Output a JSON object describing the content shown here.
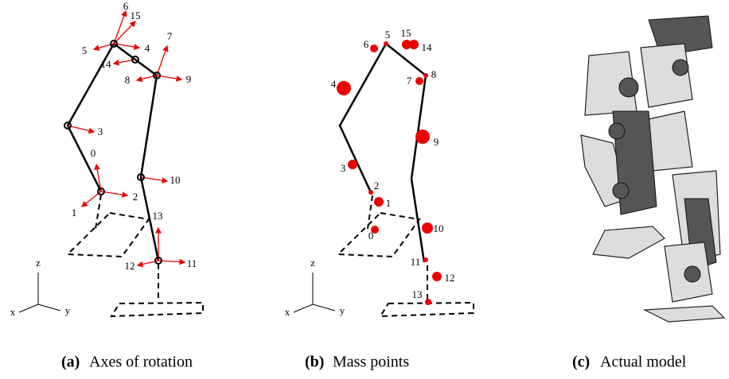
{
  "panels": [
    {
      "label": "(a)",
      "caption": "Axes of rotation",
      "joint_labels": [
        "0",
        "1",
        "2",
        "3",
        "4",
        "5",
        "6",
        "7",
        "8",
        "9",
        "10",
        "11",
        "12",
        "13",
        "14",
        "15"
      ],
      "axes": {
        "x": "x",
        "y": "y",
        "z": "z"
      }
    },
    {
      "label": "(b)",
      "caption": "Mass points",
      "mass_labels": [
        "0",
        "1",
        "2",
        "3",
        "4",
        "5",
        "6",
        "7",
        "8",
        "9",
        "10",
        "11",
        "12",
        "13",
        "14",
        "15"
      ],
      "axes": {
        "x": "x",
        "y": "y",
        "z": "z"
      }
    },
    {
      "label": "(c)",
      "caption": "Actual model"
    }
  ]
}
